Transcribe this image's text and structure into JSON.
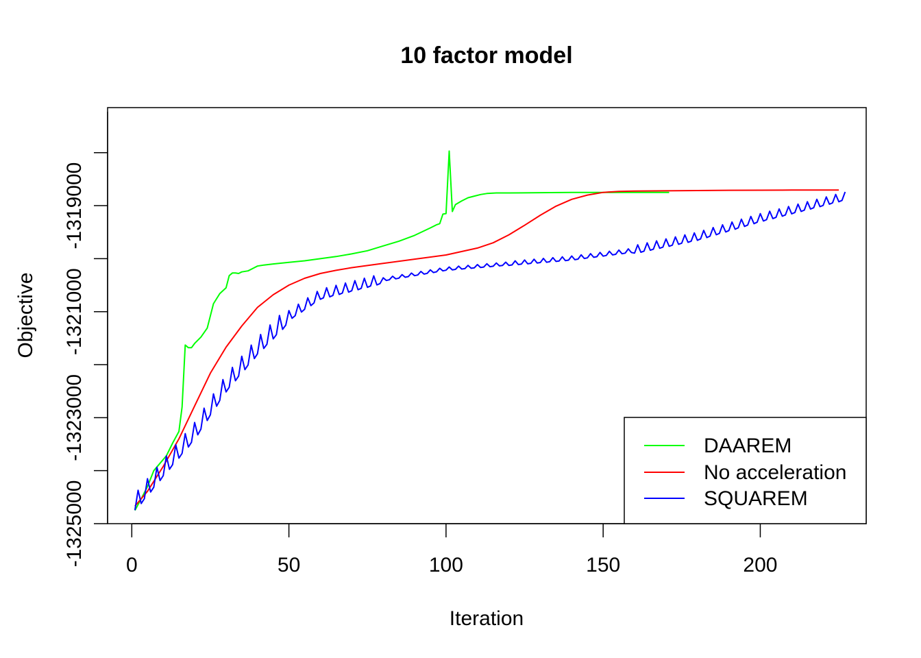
{
  "chart_data": {
    "type": "line",
    "title": "10 factor model",
    "xlabel": "Iteration",
    "ylabel": "Objective",
    "xlim": [
      -7.7,
      233.7
    ],
    "ylim": [
      -1325000,
      -1317150
    ],
    "xticks": [
      0,
      50,
      100,
      150,
      200
    ],
    "xtick_labels": [
      "0",
      "50",
      "100",
      "150",
      "200"
    ],
    "yticks": [
      -1325000,
      -1324000,
      -1323000,
      -1322000,
      -1321000,
      -1320000,
      -1319000,
      -1318000
    ],
    "ytick_labels": [
      "-1325000",
      "",
      "-1323000",
      "",
      "-1321000",
      "",
      "-1319000",
      ""
    ],
    "grid": false,
    "legend_position": "bottom-right",
    "series": [
      {
        "name": "DAAREM",
        "color": "#00ff00",
        "x": [
          1,
          3,
          5,
          7,
          9,
          11,
          13,
          15,
          16,
          17,
          18,
          19,
          20,
          22,
          24,
          26,
          28,
          30,
          31,
          32,
          33,
          34,
          35,
          37,
          39,
          40,
          42,
          45,
          50,
          55,
          60,
          65,
          70,
          75,
          80,
          85,
          90,
          95,
          97,
          98,
          99,
          100,
          101,
          102,
          103,
          105,
          107,
          109,
          111,
          113,
          116,
          120,
          130,
          140,
          150,
          160,
          171
        ],
        "y": [
          -1324750,
          -1324530,
          -1324300,
          -1324000,
          -1323860,
          -1323720,
          -1323480,
          -1323260,
          -1322800,
          -1321630,
          -1321680,
          -1321680,
          -1321600,
          -1321480,
          -1321310,
          -1320850,
          -1320660,
          -1320550,
          -1320320,
          -1320270,
          -1320270,
          -1320280,
          -1320250,
          -1320230,
          -1320170,
          -1320140,
          -1320120,
          -1320100,
          -1320070,
          -1320040,
          -1320000,
          -1319960,
          -1319910,
          -1319850,
          -1319760,
          -1319670,
          -1319560,
          -1319420,
          -1319360,
          -1319340,
          -1319160,
          -1319150,
          -1317970,
          -1319110,
          -1318980,
          -1318910,
          -1318850,
          -1318820,
          -1318790,
          -1318770,
          -1318760,
          -1318760,
          -1318755,
          -1318750,
          -1318750,
          -1318750,
          -1318750
        ]
      },
      {
        "name": "No acceleration",
        "color": "#ff0000",
        "x": [
          1,
          5,
          10,
          15,
          20,
          25,
          30,
          35,
          40,
          45,
          50,
          55,
          60,
          65,
          70,
          75,
          80,
          90,
          100,
          110,
          115,
          120,
          125,
          130,
          135,
          140,
          145,
          150,
          155,
          160,
          170,
          180,
          190,
          200,
          210,
          220,
          225
        ],
        "y": [
          -1324670,
          -1324390,
          -1323920,
          -1323400,
          -1322780,
          -1322160,
          -1321670,
          -1321270,
          -1320920,
          -1320680,
          -1320500,
          -1320370,
          -1320280,
          -1320220,
          -1320170,
          -1320130,
          -1320090,
          -1320010,
          -1319930,
          -1319800,
          -1319700,
          -1319550,
          -1319370,
          -1319180,
          -1319010,
          -1318880,
          -1318800,
          -1318750,
          -1318730,
          -1318725,
          -1318720,
          -1318715,
          -1318710,
          -1318708,
          -1318706,
          -1318705,
          -1318705
        ]
      },
      {
        "name": "SQUAREM",
        "color": "#0000ff",
        "x": [
          1,
          227
        ],
        "y": [
          -1324650,
          -1318840
        ]
      }
    ]
  }
}
